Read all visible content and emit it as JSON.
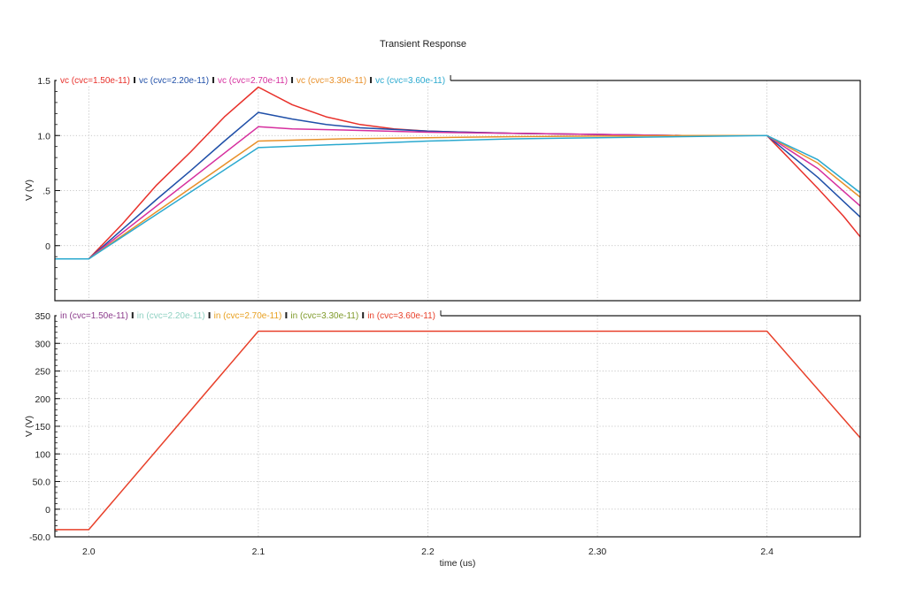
{
  "chart_data": [
    {
      "type": "line",
      "id": "top",
      "title": "Transient Response",
      "xlabel": "",
      "ylabel": "V (V)",
      "xlim": [
        1.98,
        2.455
      ],
      "ylim": [
        -0.5,
        1.5
      ],
      "x_ticks": [
        2.0,
        2.1,
        2.2,
        2.3,
        2.4
      ],
      "x_tick_labels": [
        "2.0",
        "2.1",
        "2.2",
        "2.30",
        "2.4"
      ],
      "y_ticks": [
        1.5,
        1.0,
        0.5,
        0.0
      ],
      "y_tick_labels": [
        "1.5",
        "1.0",
        ".5",
        "0"
      ],
      "grid": true,
      "legend_position": "top-left",
      "series": [
        {
          "name": "vc (cvc=1.50e-11)",
          "color": "#e8302a",
          "points": [
            [
              1.98,
              -0.12
            ],
            [
              2.0,
              -0.12
            ],
            [
              2.02,
              0.2
            ],
            [
              2.04,
              0.55
            ],
            [
              2.06,
              0.85
            ],
            [
              2.08,
              1.17
            ],
            [
              2.1,
              1.44
            ],
            [
              2.12,
              1.28
            ],
            [
              2.14,
              1.17
            ],
            [
              2.16,
              1.1
            ],
            [
              2.18,
              1.06
            ],
            [
              2.2,
              1.04
            ],
            [
              2.25,
              1.02
            ],
            [
              2.3,
              1.01
            ],
            [
              2.35,
              1.0
            ],
            [
              2.4,
              1.0
            ],
            [
              2.415,
              0.76
            ],
            [
              2.43,
              0.52
            ],
            [
              2.445,
              0.27
            ],
            [
              2.455,
              0.08
            ]
          ]
        },
        {
          "name": "vc (cvc=2.20e-11)",
          "color": "#1f4fa8",
          "points": [
            [
              1.98,
              -0.12
            ],
            [
              2.0,
              -0.12
            ],
            [
              2.02,
              0.15
            ],
            [
              2.04,
              0.42
            ],
            [
              2.06,
              0.68
            ],
            [
              2.08,
              0.95
            ],
            [
              2.1,
              1.21
            ],
            [
              2.12,
              1.15
            ],
            [
              2.14,
              1.1
            ],
            [
              2.16,
              1.07
            ],
            [
              2.2,
              1.04
            ],
            [
              2.25,
              1.02
            ],
            [
              2.3,
              1.01
            ],
            [
              2.35,
              1.0
            ],
            [
              2.4,
              1.0
            ],
            [
              2.43,
              0.62
            ],
            [
              2.455,
              0.26
            ]
          ]
        },
        {
          "name": "vc (cvc=2.70e-11)",
          "color": "#d62f9e",
          "points": [
            [
              1.98,
              -0.12
            ],
            [
              2.0,
              -0.12
            ],
            [
              2.1,
              1.08
            ],
            [
              2.12,
              1.06
            ],
            [
              2.15,
              1.05
            ],
            [
              2.2,
              1.03
            ],
            [
              2.25,
              1.02
            ],
            [
              2.3,
              1.01
            ],
            [
              2.35,
              1.0
            ],
            [
              2.4,
              1.0
            ],
            [
              2.43,
              0.7
            ],
            [
              2.455,
              0.36
            ]
          ]
        },
        {
          "name": "vc (cvc=3.30e-11)",
          "color": "#e8902a",
          "points": [
            [
              1.98,
              -0.12
            ],
            [
              2.0,
              -0.12
            ],
            [
              2.1,
              0.95
            ],
            [
              2.15,
              0.97
            ],
            [
              2.2,
              0.98
            ],
            [
              2.25,
              0.99
            ],
            [
              2.3,
              0.995
            ],
            [
              2.35,
              1.0
            ],
            [
              2.4,
              1.0
            ],
            [
              2.43,
              0.75
            ],
            [
              2.455,
              0.44
            ]
          ]
        },
        {
          "name": "vc (cvc=3.60e-11)",
          "color": "#2aa9cf",
          "points": [
            [
              1.98,
              -0.12
            ],
            [
              2.0,
              -0.12
            ],
            [
              2.1,
              0.89
            ],
            [
              2.15,
              0.92
            ],
            [
              2.2,
              0.95
            ],
            [
              2.25,
              0.97
            ],
            [
              2.3,
              0.98
            ],
            [
              2.35,
              0.99
            ],
            [
              2.4,
              1.0
            ],
            [
              2.43,
              0.78
            ],
            [
              2.455,
              0.48
            ]
          ]
        }
      ]
    },
    {
      "type": "line",
      "id": "bottom",
      "title": "",
      "xlabel": "time (us)",
      "ylabel": "V (V)",
      "xlim": [
        1.98,
        2.455
      ],
      "ylim": [
        -50.0,
        350
      ],
      "x_ticks": [
        2.0,
        2.1,
        2.2,
        2.3,
        2.4
      ],
      "x_tick_labels": [
        "2.0",
        "2.1",
        "2.2",
        "2.30",
        "2.4"
      ],
      "y_ticks": [
        350,
        300,
        250,
        200,
        150,
        100,
        50,
        0,
        -50
      ],
      "y_tick_labels": [
        "350",
        "300",
        "250",
        "200",
        "150",
        "100",
        "50.0",
        "0",
        "-50.0"
      ],
      "grid": true,
      "legend_position": "top-left",
      "series": [
        {
          "name": "in (cvc=1.50e-11)",
          "color": "#8b3a8b",
          "points": []
        },
        {
          "name": "in (cvc=2.20e-11)",
          "color": "#8fd1c2",
          "points": []
        },
        {
          "name": "in (cvc=2.70e-11)",
          "color": "#e8a020",
          "points": []
        },
        {
          "name": "in (cvc=3.30e-11)",
          "color": "#7f9a2a",
          "points": []
        },
        {
          "name": "in (cvc=3.60e-11)",
          "color": "#e8402a",
          "points": [
            [
              1.98,
              -37
            ],
            [
              2.0,
              -37
            ],
            [
              2.1,
              322
            ],
            [
              2.4,
              322
            ],
            [
              2.455,
              129
            ]
          ]
        }
      ]
    }
  ]
}
